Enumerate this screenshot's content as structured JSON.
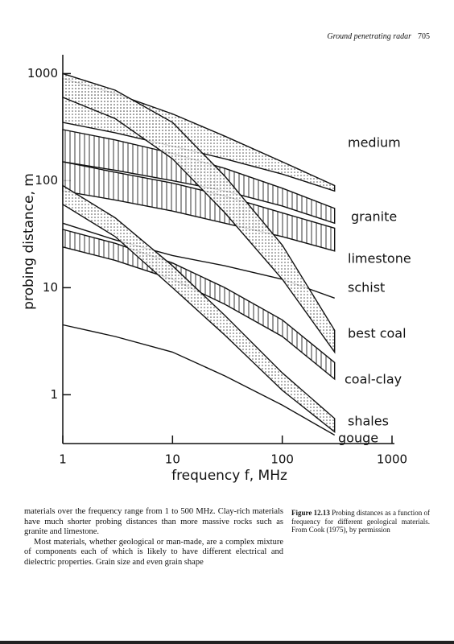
{
  "header": {
    "title": "Ground penetrating radar",
    "page": "705"
  },
  "chart_data": {
    "type": "band",
    "x_label": "frequency f, MHz",
    "y_label": "probing distance, m",
    "log_x": true,
    "log_y": true,
    "xlim": [
      1,
      1000
    ],
    "ylim": [
      0.35,
      1500
    ],
    "xticks": [
      1,
      10,
      100,
      1000
    ],
    "yticks": [
      1,
      10,
      100,
      1000
    ],
    "x": [
      1,
      3,
      10,
      30,
      100,
      300
    ],
    "series": [
      {
        "name": "medium",
        "pattern": "dots",
        "upper": [
          900,
          650,
          420,
          260,
          150,
          90
        ],
        "lower": [
          350,
          280,
          210,
          160,
          115,
          80
        ]
      },
      {
        "name": "granite",
        "pattern": "hatch",
        "upper": [
          300,
          240,
          180,
          130,
          85,
          55
        ],
        "lower": [
          150,
          125,
          100,
          80,
          58,
          40
        ]
      },
      {
        "name": "limestone",
        "pattern": "hatch",
        "upper": [
          150,
          120,
          95,
          72,
          50,
          36
        ],
        "lower": [
          80,
          66,
          52,
          40,
          30,
          22
        ]
      },
      {
        "name": "schist",
        "pattern": "none",
        "values": [
          40,
          28,
          20,
          16,
          12,
          8
        ]
      },
      {
        "name": "best coal",
        "pattern": "dots",
        "upper": [
          1000,
          700,
          350,
          110,
          25,
          4
        ],
        "lower": [
          600,
          380,
          160,
          50,
          12,
          2.5
        ]
      },
      {
        "name": "coal-clay",
        "pattern": "hatch",
        "upper": [
          35,
          26,
          17,
          10,
          5,
          2
        ],
        "lower": [
          24,
          18,
          12,
          7,
          3.5,
          1.4
        ]
      },
      {
        "name": "shales",
        "pattern": "dots",
        "upper": [
          90,
          45,
          16,
          5.5,
          1.6,
          0.6
        ],
        "lower": [
          60,
          30,
          10,
          3.6,
          1.1,
          0.45
        ]
      },
      {
        "name": "gouge",
        "pattern": "none",
        "values": [
          4.5,
          3.5,
          2.5,
          1.5,
          0.8,
          0.42
        ]
      }
    ]
  },
  "body": {
    "paragraphs": [
      "materials over the frequency range from 1 to 500 MHz. Clay-rich materials have much shorter probing distances than more massive rocks such as granite and limestone.",
      "Most materials, whether geological or man-made, are a complex mixture of components each of which is likely to have different electrical and dielectric properties. Grain size and even grain shape"
    ]
  },
  "caption": {
    "label": "Figure 12.13",
    "text": "Probing distances as a function of frequency for different geological materials. From Cook (1975), by permission"
  }
}
